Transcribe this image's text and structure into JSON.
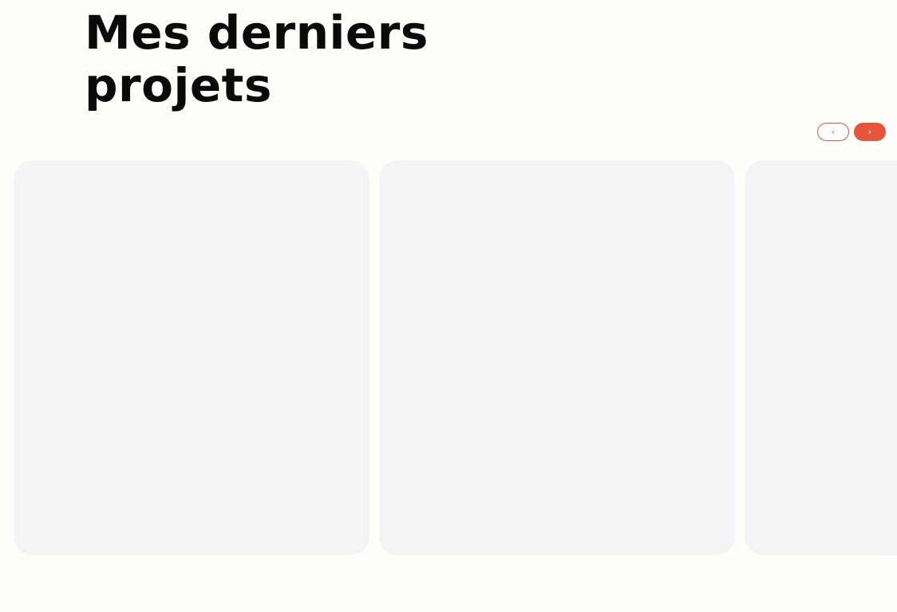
{
  "section": {
    "title_line1": "Mes derniers",
    "title_line2": "projets"
  },
  "carousel": {
    "prev_icon": "chevron-left-icon",
    "next_icon": "chevron-right-icon",
    "prev_glyph": "‹",
    "next_glyph": "›",
    "accent_color": "#e4553c",
    "card_color": "#f4f4f6",
    "cards_visible": 3
  }
}
